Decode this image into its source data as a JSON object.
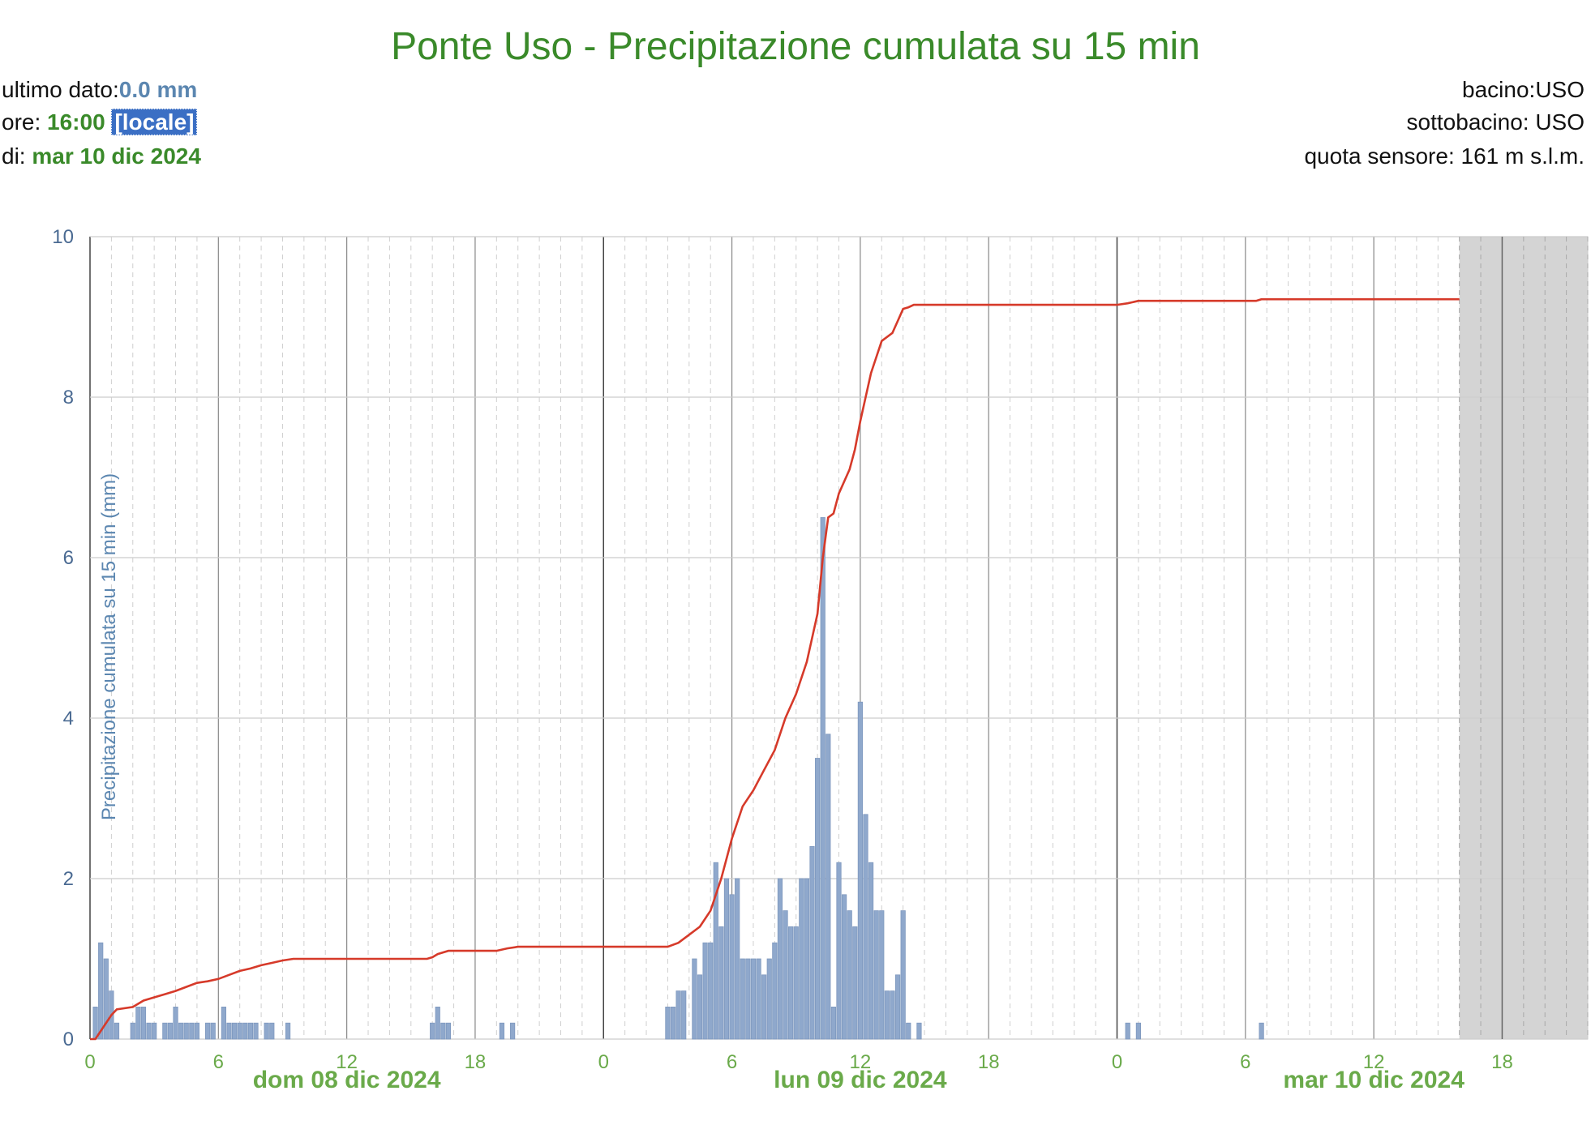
{
  "header": {
    "title": "Ponte Uso - Precipitazione cumulata su 15 min",
    "last_label": "ultimo dato:",
    "last_value": "0.0 mm",
    "time_label": "ore: ",
    "time_value": "16:00",
    "time_zone": "[locale]",
    "date_label": "di: ",
    "date_value": "mar 10 dic 2024",
    "basin": "bacino:USO",
    "subbasin": "sottobacino: USO",
    "altitude": "quota sensore: 161 m s.l.m."
  },
  "colors": {
    "bars": "#8fa8cc",
    "line": "#d63a2a",
    "no_data": "#cccccc",
    "title": "#3a8a2a",
    "y_ticks": "#4a6a92",
    "x_ticks": "#6aaa4a"
  },
  "chart_data": {
    "type": "bar",
    "title": "Ponte Uso - Precipitazione cumulata su 15 min",
    "ylabel": "Precipitazione cumulata su 15 min (mm)",
    "xlabel": "",
    "ylim": [
      0,
      10
    ],
    "y_ticks": [
      "0",
      "2",
      "4",
      "6",
      "8",
      "10"
    ],
    "xlim_hours": [
      0,
      70
    ],
    "x_ticks": [
      "0",
      "6",
      "12",
      "18",
      "0",
      "6",
      "12",
      "18",
      "0",
      "6",
      "12",
      "18"
    ],
    "day_labels": [
      "dom 08 dic 2024",
      "lun 09 dic 2024",
      "mar 10 dic 2024"
    ],
    "grid": true,
    "no_data_from_hour": 64,
    "series": [
      {
        "kind": "bar",
        "unit": "mm",
        "points": [
          [
            0.25,
            0.4
          ],
          [
            0.5,
            1.2
          ],
          [
            0.75,
            1.0
          ],
          [
            1.0,
            0.6
          ],
          [
            1.25,
            0.2
          ],
          [
            2.0,
            0.2
          ],
          [
            2.25,
            0.4
          ],
          [
            2.5,
            0.4
          ],
          [
            2.75,
            0.2
          ],
          [
            3.0,
            0.2
          ],
          [
            3.5,
            0.2
          ],
          [
            3.75,
            0.2
          ],
          [
            4.0,
            0.4
          ],
          [
            4.25,
            0.2
          ],
          [
            4.5,
            0.2
          ],
          [
            4.75,
            0.2
          ],
          [
            5.0,
            0.2
          ],
          [
            5.5,
            0.2
          ],
          [
            5.75,
            0.2
          ],
          [
            6.25,
            0.4
          ],
          [
            6.5,
            0.2
          ],
          [
            6.75,
            0.2
          ],
          [
            7.0,
            0.2
          ],
          [
            7.25,
            0.2
          ],
          [
            7.5,
            0.2
          ],
          [
            7.75,
            0.2
          ],
          [
            8.25,
            0.2
          ],
          [
            8.5,
            0.2
          ],
          [
            9.25,
            0.2
          ],
          [
            16.0,
            0.2
          ],
          [
            16.25,
            0.4
          ],
          [
            16.5,
            0.2
          ],
          [
            16.75,
            0.2
          ],
          [
            19.25,
            0.2
          ],
          [
            19.75,
            0.2
          ],
          [
            27.0,
            0.4
          ],
          [
            27.25,
            0.4
          ],
          [
            27.5,
            0.6
          ],
          [
            27.75,
            0.6
          ],
          [
            28.25,
            1.0
          ],
          [
            28.5,
            0.8
          ],
          [
            28.75,
            1.2
          ],
          [
            29.0,
            1.2
          ],
          [
            29.25,
            2.2
          ],
          [
            29.5,
            1.4
          ],
          [
            29.75,
            2.0
          ],
          [
            30.0,
            1.8
          ],
          [
            30.25,
            2.0
          ],
          [
            30.5,
            1.0
          ],
          [
            30.75,
            1.0
          ],
          [
            31.0,
            1.0
          ],
          [
            31.25,
            1.0
          ],
          [
            31.5,
            0.8
          ],
          [
            31.75,
            1.0
          ],
          [
            32.0,
            1.2
          ],
          [
            32.25,
            2.0
          ],
          [
            32.5,
            1.6
          ],
          [
            32.75,
            1.4
          ],
          [
            33.0,
            1.4
          ],
          [
            33.25,
            2.0
          ],
          [
            33.5,
            2.0
          ],
          [
            33.75,
            2.4
          ],
          [
            34.0,
            3.5
          ],
          [
            34.25,
            6.5
          ],
          [
            34.5,
            3.8
          ],
          [
            34.75,
            0.4
          ],
          [
            35.0,
            2.2
          ],
          [
            35.25,
            1.8
          ],
          [
            35.5,
            1.6
          ],
          [
            35.75,
            1.4
          ],
          [
            36.0,
            4.2
          ],
          [
            36.25,
            2.8
          ],
          [
            36.5,
            2.2
          ],
          [
            36.75,
            1.6
          ],
          [
            37.0,
            1.6
          ],
          [
            37.25,
            0.6
          ],
          [
            37.5,
            0.6
          ],
          [
            37.75,
            0.8
          ],
          [
            38.0,
            1.6
          ],
          [
            38.25,
            0.2
          ],
          [
            38.75,
            0.2
          ],
          [
            48.5,
            0.2
          ],
          [
            49.0,
            0.2
          ],
          [
            54.75,
            0.2
          ]
        ]
      },
      {
        "kind": "line",
        "unit": "mm",
        "points": [
          [
            0,
            0
          ],
          [
            0.25,
            0.0
          ],
          [
            0.5,
            0.1
          ],
          [
            1.0,
            0.3
          ],
          [
            1.25,
            0.37
          ],
          [
            2.0,
            0.4
          ],
          [
            2.5,
            0.48
          ],
          [
            3.0,
            0.52
          ],
          [
            3.5,
            0.56
          ],
          [
            4.0,
            0.6
          ],
          [
            4.5,
            0.65
          ],
          [
            5.0,
            0.7
          ],
          [
            5.5,
            0.72
          ],
          [
            6.0,
            0.75
          ],
          [
            6.5,
            0.8
          ],
          [
            7.0,
            0.85
          ],
          [
            7.5,
            0.88
          ],
          [
            8.0,
            0.92
          ],
          [
            8.5,
            0.95
          ],
          [
            9.0,
            0.98
          ],
          [
            9.5,
            1.0
          ],
          [
            15.75,
            1.0
          ],
          [
            16.0,
            1.02
          ],
          [
            16.25,
            1.06
          ],
          [
            16.75,
            1.1
          ],
          [
            19.0,
            1.1
          ],
          [
            19.5,
            1.13
          ],
          [
            20.0,
            1.15
          ],
          [
            27.0,
            1.15
          ],
          [
            27.5,
            1.2
          ],
          [
            28.0,
            1.3
          ],
          [
            28.5,
            1.4
          ],
          [
            29.0,
            1.6
          ],
          [
            29.5,
            2.0
          ],
          [
            30.0,
            2.5
          ],
          [
            30.5,
            2.9
          ],
          [
            31.0,
            3.1
          ],
          [
            31.5,
            3.35
          ],
          [
            32.0,
            3.6
          ],
          [
            32.5,
            4.0
          ],
          [
            33.0,
            4.3
          ],
          [
            33.5,
            4.7
          ],
          [
            34.0,
            5.3
          ],
          [
            34.25,
            6.0
          ],
          [
            34.5,
            6.5
          ],
          [
            34.75,
            6.55
          ],
          [
            35.0,
            6.8
          ],
          [
            35.5,
            7.1
          ],
          [
            35.75,
            7.35
          ],
          [
            36.0,
            7.7
          ],
          [
            36.25,
            8.0
          ],
          [
            36.5,
            8.3
          ],
          [
            36.75,
            8.5
          ],
          [
            37.0,
            8.7
          ],
          [
            37.5,
            8.8
          ],
          [
            37.75,
            8.95
          ],
          [
            38.0,
            9.1
          ],
          [
            38.25,
            9.12
          ],
          [
            38.5,
            9.15
          ],
          [
            48.0,
            9.15
          ],
          [
            48.5,
            9.17
          ],
          [
            49.0,
            9.2
          ],
          [
            54.5,
            9.2
          ],
          [
            54.75,
            9.22
          ],
          [
            64.0,
            9.22
          ]
        ]
      }
    ]
  }
}
